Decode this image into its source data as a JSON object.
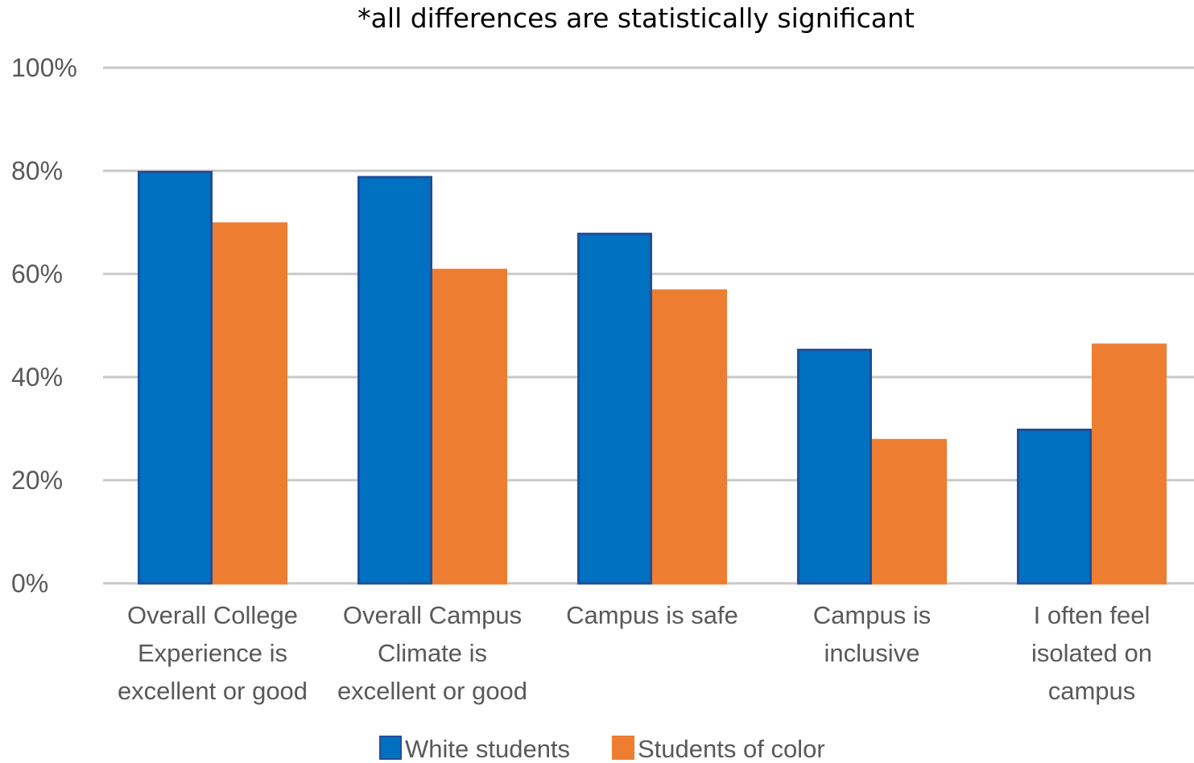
{
  "chart_data": {
    "type": "bar",
    "subtitle": "*all differences are statistically significant",
    "categories": [
      [
        "Overall College",
        "Experience is",
        "excellent or good"
      ],
      [
        "Overall Campus",
        "Climate is",
        "excellent or good"
      ],
      [
        "Campus is safe"
      ],
      [
        "Campus is",
        "inclusive"
      ],
      [
        "I often feel",
        "isolated on",
        "campus"
      ]
    ],
    "series": [
      {
        "name": "White students",
        "color": "#0070C0",
        "border": "#1F4E9A",
        "values": [
          80,
          79,
          68,
          45.5,
          30
        ]
      },
      {
        "name": "Students of color",
        "color": "#ED7D31",
        "border": "#ED7D31",
        "values": [
          70,
          61,
          57,
          28,
          46.5
        ]
      }
    ],
    "ylim": [
      0,
      100
    ],
    "yticks": [
      "0%",
      "20%",
      "40%",
      "60%",
      "80%",
      "100%"
    ],
    "ytick_values": [
      0,
      20,
      40,
      60,
      80,
      100
    ],
    "grid": true,
    "legend": "bottom"
  }
}
